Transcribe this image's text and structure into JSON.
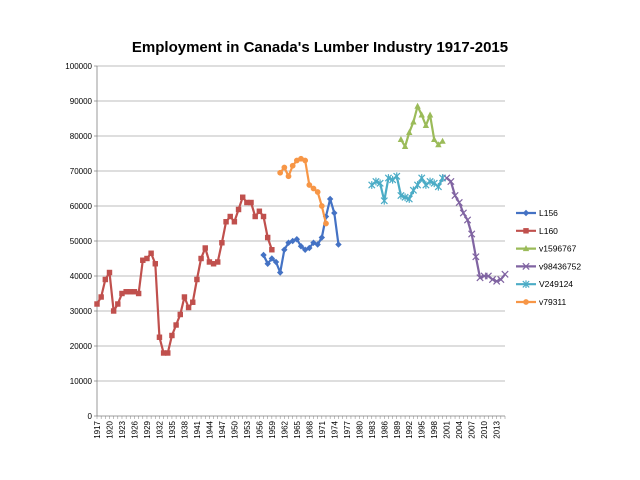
{
  "chart_data": {
    "type": "line",
    "title": "Employment in Canada's Lumber Industry 1917-2015",
    "xlabel": "",
    "ylabel": "",
    "xlim": [
      1917,
      2015
    ],
    "ylim": [
      0,
      100000
    ],
    "yticks": [
      0,
      10000,
      20000,
      30000,
      40000,
      50000,
      60000,
      70000,
      80000,
      90000,
      100000
    ],
    "ytick_labels": [
      "0",
      "10000",
      "20000",
      "30000",
      "40000",
      "50000",
      "60000",
      "70000",
      "80000",
      "90000",
      "100000"
    ],
    "xtick_labels": [
      "1917",
      "1920",
      "1923",
      "1926",
      "1929",
      "1932",
      "1935",
      "1938",
      "1941",
      "1944",
      "1947",
      "1950",
      "1953",
      "1956",
      "1959",
      "1962",
      "1965",
      "1968",
      "1971",
      "1974",
      "1977",
      "1980",
      "1983",
      "1986",
      "1989",
      "1992",
      "1995",
      "1998",
      "2001",
      "2004",
      "2007",
      "2010",
      "2013"
    ],
    "grid": "horizontal",
    "legend_position": "right",
    "series": [
      {
        "name": "L156",
        "color": "#4472C4",
        "marker": "diamond",
        "x": [
          1957,
          1958,
          1959,
          1960,
          1961,
          1962,
          1963,
          1964,
          1965,
          1966,
          1967,
          1968,
          1969,
          1970,
          1971,
          1972,
          1973,
          1974,
          1975
        ],
        "values": [
          46000,
          43500,
          45000,
          44000,
          41000,
          47500,
          49500,
          50000,
          50500,
          48500,
          47500,
          48000,
          49500,
          49000,
          51000,
          57000,
          62000,
          58000,
          49000
        ]
      },
      {
        "name": "L160",
        "color": "#C0504D",
        "marker": "square",
        "x": [
          1917,
          1918,
          1919,
          1920,
          1921,
          1922,
          1923,
          1924,
          1925,
          1926,
          1927,
          1928,
          1929,
          1930,
          1931,
          1932,
          1933,
          1934,
          1935,
          1936,
          1937,
          1938,
          1939,
          1940,
          1941,
          1942,
          1943,
          1944,
          1945,
          1946,
          1947,
          1948,
          1949,
          1950,
          1951,
          1952,
          1953,
          1954,
          1955,
          1956,
          1957,
          1958,
          1959
        ],
        "values": [
          32000,
          34000,
          39000,
          41000,
          30000,
          32000,
          35000,
          35500,
          35500,
          35500,
          35000,
          44500,
          45000,
          46500,
          43500,
          22500,
          18000,
          18000,
          23000,
          26000,
          29000,
          34000,
          31000,
          32500,
          39000,
          45000,
          48000,
          44000,
          43500,
          44000,
          49500,
          55500,
          57000,
          55500,
          59000,
          62500,
          61000,
          61000,
          57000,
          58500,
          57000,
          51000,
          47500
        ]
      },
      {
        "name": "v1596767",
        "color": "#9BBB59",
        "marker": "triangle",
        "x": [
          1990,
          1991,
          1992,
          1993,
          1994,
          1995,
          1996,
          1997,
          1998,
          1999,
          2000
        ],
        "values": [
          79000,
          77000,
          81000,
          84000,
          88500,
          86000,
          83000,
          86000,
          79000,
          77500,
          78500
        ]
      },
      {
        "name": "v98436752",
        "color": "#8064A2",
        "marker": "x",
        "x": [
          2001,
          2002,
          2003,
          2004,
          2005,
          2006,
          2007,
          2008,
          2009,
          2010,
          2011,
          2012,
          2013,
          2014,
          2015
        ],
        "values": [
          68000,
          67000,
          63000,
          61000,
          58000,
          56000,
          52000,
          45500,
          39500,
          40000,
          40000,
          39000,
          38500,
          39000,
          40500
        ]
      },
      {
        "name": "V249124",
        "color": "#4BACC6",
        "marker": "star",
        "x": [
          1983,
          1984,
          1985,
          1986,
          1987,
          1988,
          1989,
          1990,
          1991,
          1992,
          1993,
          1994,
          1995,
          1996,
          1997,
          1998,
          1999,
          2000
        ],
        "values": [
          66000,
          67000,
          66500,
          61500,
          68000,
          67500,
          68500,
          63000,
          62500,
          62000,
          64500,
          66000,
          68000,
          66000,
          67000,
          66500,
          65500,
          68000
        ]
      },
      {
        "name": "v79311",
        "color": "#F79646",
        "marker": "circle",
        "x": [
          1961,
          1962,
          1963,
          1964,
          1965,
          1966,
          1967,
          1968,
          1969,
          1970,
          1971,
          1972
        ],
        "values": [
          69500,
          71000,
          68500,
          71500,
          73000,
          73500,
          73000,
          66000,
          65000,
          64000,
          60000,
          55000
        ]
      }
    ]
  }
}
